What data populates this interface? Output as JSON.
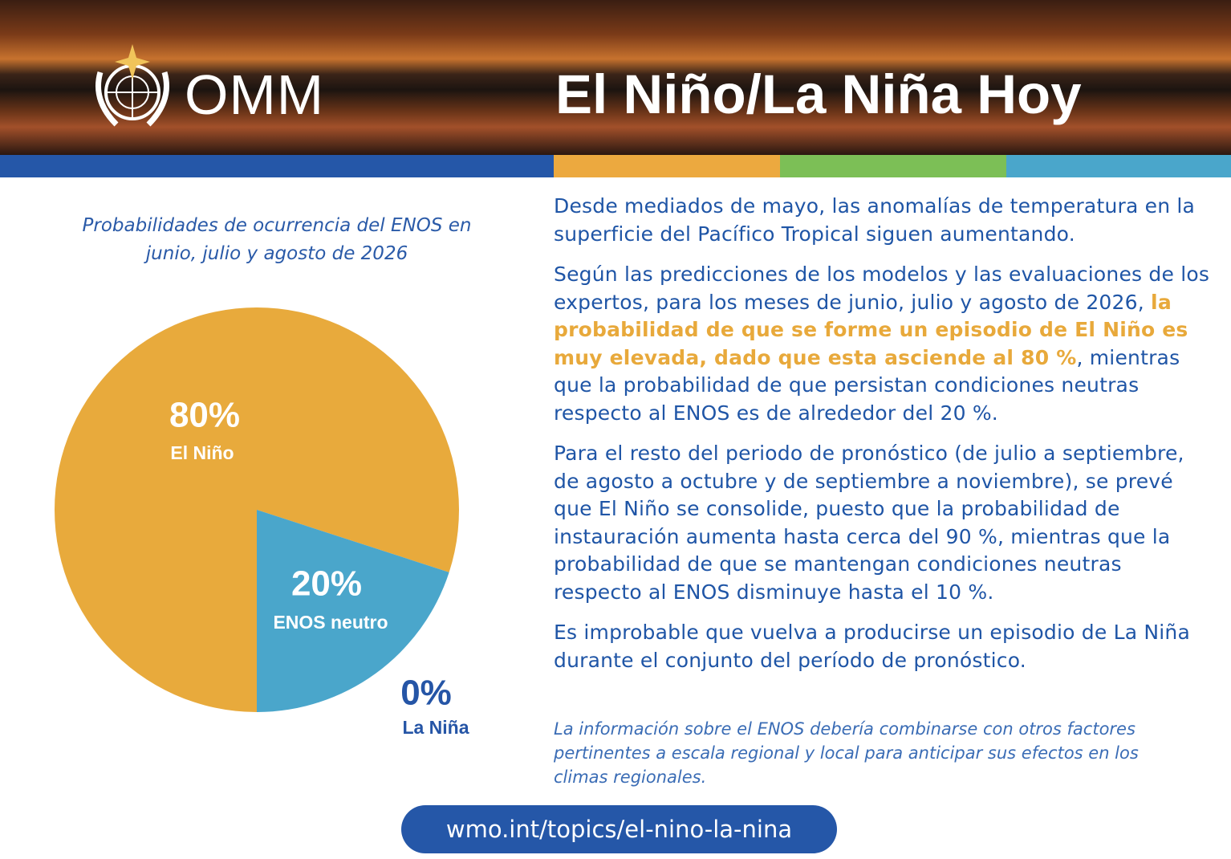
{
  "header": {
    "logo": "OMM",
    "title": "El Niño/La Niña Hoy"
  },
  "chart_data": {
    "type": "pie",
    "title": "Probabilidades de ocurrencia del ENOS en junio, julio y agosto de 2026",
    "categories": [
      "El Niño",
      "ENOS neutro",
      "La Niña"
    ],
    "values": [
      80,
      20,
      0
    ],
    "value_labels": [
      "80%",
      "20%",
      "0%"
    ],
    "colors": [
      "#e8aa3c",
      "#4aa6cb",
      "#2555a6"
    ]
  },
  "text": {
    "paragraphs": [
      [
        "Desde mediados de mayo, las anomalías de temperatura en la superficie del Pacífico Tropical siguen aumentando."
      ],
      [
        "Según las predicciones de los modelos y las evaluaciones de los expertos, para los meses de junio, julio y agosto de 2026, ",
        "la probabilidad de que se forme un episodio de El Niño es muy elevada, dado que esta asciende al 80 %",
        ", mientras que la probabilidad de que persistan condiciones neutras respecto al ENOS es de alrededor del 20 %."
      ],
      [
        "Para el resto del periodo de pronóstico (de julio a septiembre, de agosto a octubre y de septiembre a noviembre), se prevé que El Niño se consolide, puesto que la probabilidad de instauración aumenta hasta cerca del 90 %, mientras que la probabilidad de que se mantengan condiciones neutras respecto al ENOS disminuye hasta el 10 %."
      ],
      [
        "Es improbable que vuelva a producirse un episodio de La Niña durante el conjunto del período de pronóstico."
      ]
    ],
    "note": "La información sobre el ENOS debería combinarse con otros factores pertinentes a escala regional y local para anticipar sus efectos en los climas regionales."
  },
  "footer": {
    "link": "wmo.int/topics/el-nino-la-nina"
  }
}
